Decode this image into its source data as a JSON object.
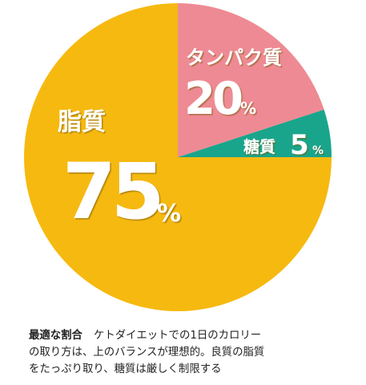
{
  "chart_data": {
    "type": "pie",
    "categories": [
      "脂質",
      "タンパク質",
      "糖質"
    ],
    "values": [
      75,
      20,
      5
    ],
    "value_labels": [
      "75",
      "20",
      "5"
    ],
    "unit": "%",
    "colors": [
      "#f6b910",
      "#ee8a93",
      "#19a58c"
    ],
    "start": "12 o'clock, clockwise: タンパク質, 糖質, then 脂質",
    "legend": "none (labels inside slices)"
  },
  "caption": {
    "heading": "最適な割合",
    "line1_rest": "ケトダイエットでの1日のカロリー",
    "line2": "の取り方は、上のバランスが理想的。良質の脂質",
    "line3": "をたっぷり取り、糖質は厳しく制限する"
  }
}
